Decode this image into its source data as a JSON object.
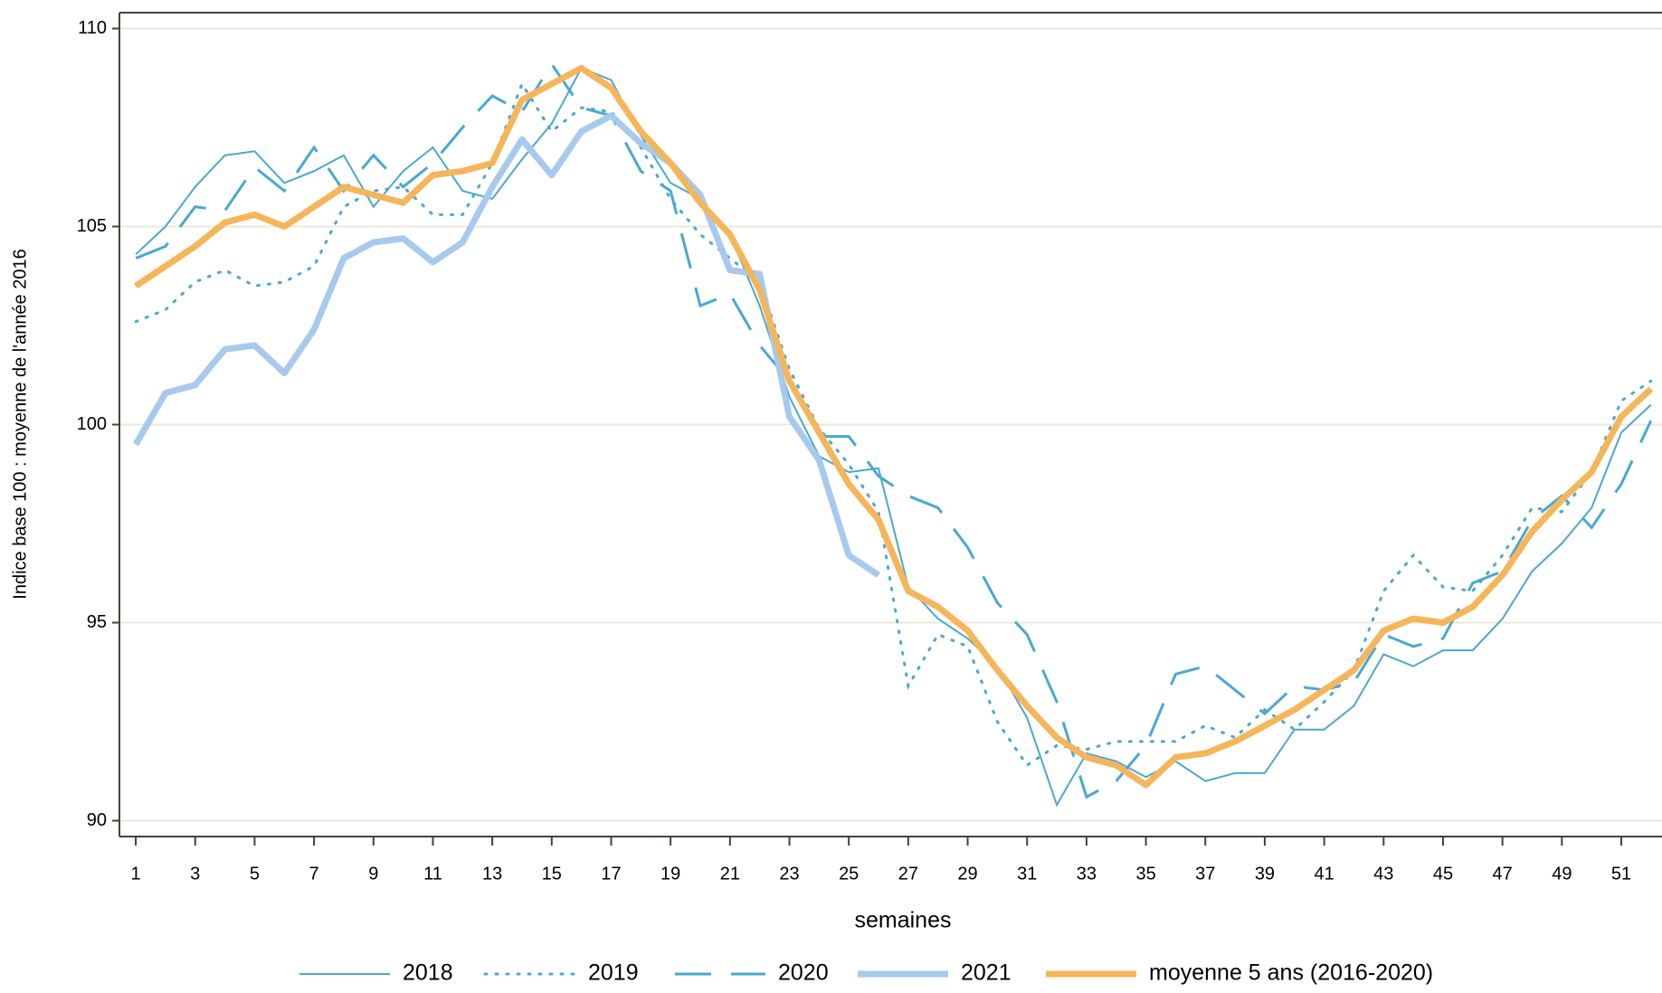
{
  "chart_data": {
    "type": "line",
    "x_label": "semaines",
    "y_label": "Indice base 100 : moyenne de l'année 2016",
    "x": [
      1,
      2,
      3,
      4,
      5,
      6,
      7,
      8,
      9,
      10,
      11,
      12,
      13,
      14,
      15,
      16,
      17,
      18,
      19,
      20,
      21,
      22,
      23,
      24,
      25,
      26,
      27,
      28,
      29,
      30,
      31,
      32,
      33,
      34,
      35,
      36,
      37,
      38,
      39,
      40,
      41,
      42,
      43,
      44,
      45,
      46,
      47,
      48,
      49,
      50,
      51,
      52
    ],
    "xlim": [
      0.45,
      52.37
    ],
    "xticks": [
      1,
      3,
      5,
      7,
      9,
      11,
      13,
      15,
      17,
      19,
      21,
      23,
      25,
      27,
      29,
      31,
      33,
      35,
      37,
      39,
      41,
      43,
      45,
      47,
      49,
      51
    ],
    "ylim": [
      89.6,
      110.4
    ],
    "yticks": [
      90,
      95,
      100,
      105,
      110
    ],
    "grid": true,
    "legend": "bottom",
    "series": [
      {
        "name": "2018",
        "color": "#4aa8d0",
        "style": "thin",
        "values": [
          104.3,
          105.0,
          106.0,
          106.8,
          106.9,
          106.1,
          106.4,
          106.8,
          105.5,
          106.4,
          107.0,
          105.9,
          105.7,
          106.7,
          107.6,
          109.0,
          108.7,
          107.3,
          106.1,
          105.7,
          104.8,
          103.0,
          100.7,
          99.2,
          98.8,
          98.9,
          95.9,
          95.1,
          94.6,
          93.9,
          92.6,
          90.4,
          91.7,
          91.5,
          91.1,
          91.5,
          91.0,
          91.2,
          91.2,
          92.3,
          92.3,
          92.9,
          94.2,
          93.9,
          94.3,
          94.3,
          95.1,
          96.3,
          97.0,
          97.9,
          99.8,
          100.5
        ]
      },
      {
        "name": "2019",
        "color": "#4aa8d0",
        "style": "dotted",
        "values": [
          102.6,
          102.9,
          103.6,
          103.9,
          103.5,
          103.6,
          104.0,
          105.5,
          105.9,
          106.0,
          105.3,
          105.3,
          106.6,
          108.6,
          107.4,
          108.0,
          107.9,
          107.0,
          105.7,
          104.8,
          104.2,
          103.6,
          101.4,
          99.9,
          99.0,
          97.8,
          93.4,
          94.7,
          94.4,
          92.5,
          91.4,
          91.9,
          91.8,
          92.0,
          92.0,
          92.0,
          92.4,
          92.1,
          92.8,
          92.3,
          93.0,
          93.8,
          95.8,
          96.7,
          95.9,
          95.8,
          96.7,
          97.9,
          97.8,
          98.8,
          100.6,
          101.1
        ]
      },
      {
        "name": "2020",
        "color": "#4aa8d0",
        "style": "dashed",
        "values": [
          104.2,
          104.5,
          105.5,
          105.4,
          106.5,
          105.9,
          107.0,
          105.9,
          106.8,
          106.0,
          106.6,
          107.5,
          108.3,
          107.9,
          109.1,
          108.0,
          107.8,
          106.4,
          105.9,
          103.0,
          103.3,
          102.0,
          101.1,
          99.7,
          99.7,
          98.7,
          98.2,
          97.9,
          96.9,
          95.5,
          94.7,
          93.0,
          90.6,
          91.0,
          91.9,
          93.7,
          93.9,
          93.3,
          92.7,
          93.4,
          93.3,
          93.5,
          94.7,
          94.4,
          94.6,
          96.0,
          96.3,
          97.6,
          98.2,
          97.4,
          98.5,
          100.1
        ]
      },
      {
        "name": "2021",
        "color": "#a7c9ee",
        "style": "thick",
        "values": [
          99.5,
          100.8,
          101.0,
          101.9,
          102.0,
          101.3,
          102.4,
          104.2,
          104.6,
          104.7,
          104.1,
          104.6,
          106.0,
          107.2,
          106.3,
          107.4,
          107.8,
          107.1,
          106.6,
          105.8,
          103.9,
          103.8,
          100.2,
          99.1,
          96.7,
          96.2,
          null,
          null,
          null,
          null,
          null,
          null,
          null,
          null,
          null,
          null,
          null,
          null,
          null,
          null,
          null,
          null,
          null,
          null,
          null,
          null,
          null,
          null,
          null,
          null,
          null,
          null
        ]
      },
      {
        "name": "moyenne 5 ans (2016-2020)",
        "color": "#f5b55a",
        "style": "thick",
        "values": [
          103.5,
          104.0,
          104.5,
          105.1,
          105.3,
          105.0,
          105.5,
          106.0,
          105.8,
          105.6,
          106.3,
          106.4,
          106.6,
          108.2,
          108.6,
          109.0,
          108.5,
          107.4,
          106.6,
          105.6,
          104.8,
          103.4,
          101.1,
          99.8,
          98.5,
          97.6,
          95.8,
          95.4,
          94.8,
          93.8,
          92.9,
          92.1,
          91.6,
          91.4,
          90.9,
          91.6,
          91.7,
          92.0,
          92.4,
          92.8,
          93.3,
          93.8,
          94.8,
          95.1,
          95.0,
          95.4,
          96.2,
          97.3,
          98.1,
          98.8,
          100.2,
          100.9
        ]
      }
    ]
  }
}
